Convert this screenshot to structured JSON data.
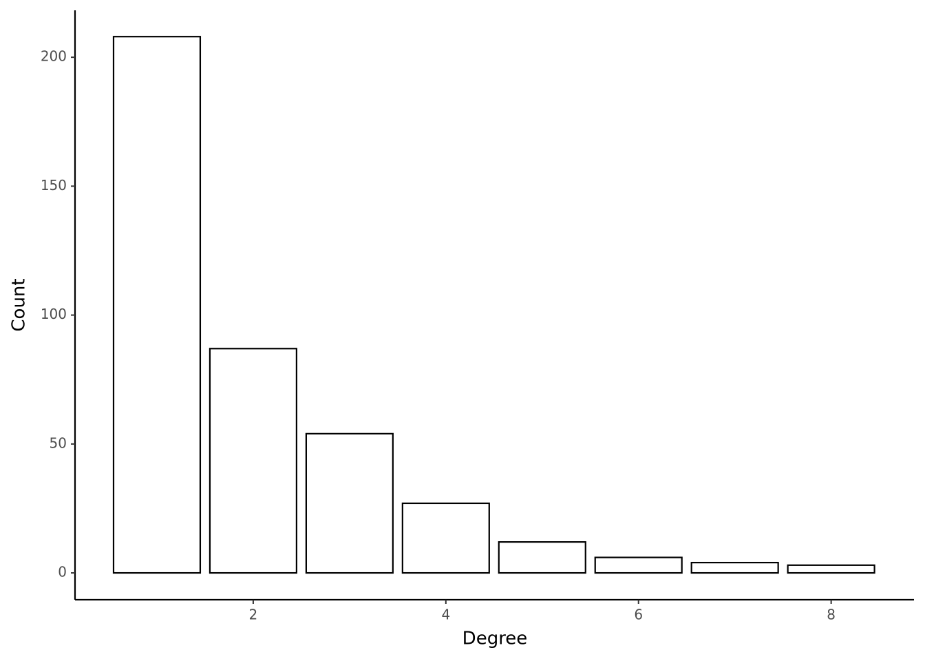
{
  "chart_data": {
    "type": "bar",
    "x_label": "Degree",
    "y_label": "Count",
    "x": [
      1,
      2,
      3,
      4,
      5,
      6,
      7,
      8
    ],
    "values": [
      208,
      87,
      54,
      27,
      12,
      6,
      4,
      3
    ],
    "color": "#ffffff",
    "edge_color": "#000000",
    "xlim": [
      0.15,
      8.86
    ],
    "xticks": [
      2,
      4,
      6,
      8
    ],
    "ylim": [
      -10.4,
      218.2
    ],
    "yticks": [
      0,
      50,
      100,
      150,
      200
    ],
    "grid": false
  }
}
